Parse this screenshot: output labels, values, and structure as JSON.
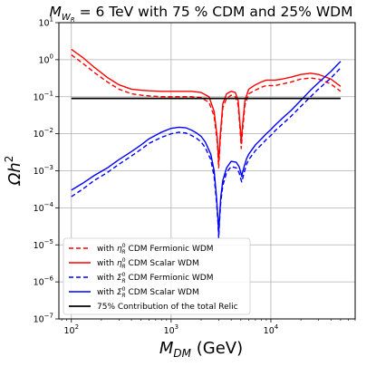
{
  "chart_data": {
    "type": "line",
    "title": {
      "prefix": "M",
      "prefix_sub": "W",
      "prefix_subsub": "R",
      "text": " = 6 TeV with 75 % CDM and 25% WDM"
    },
    "xlabel": {
      "main": "M",
      "sub": "DM",
      "unit": " (GeV)"
    },
    "ylabel": {
      "main": "Ωh",
      "sup": "2"
    },
    "x_scale": "log",
    "y_scale": "log",
    "xlim": [
      75,
      70000
    ],
    "ylim": [
      1e-07,
      10
    ],
    "x_ticks": [
      {
        "base": "10",
        "exp": "2",
        "value": 100
      },
      {
        "base": "10",
        "exp": "3",
        "value": 1000
      },
      {
        "base": "10",
        "exp": "4",
        "value": 10000
      }
    ],
    "y_ticks": [
      {
        "base": "10",
        "exp": "1",
        "value": 10
      },
      {
        "base": "10",
        "exp": "0",
        "value": 1
      },
      {
        "base": "10",
        "exp": "−1",
        "value": 0.1
      },
      {
        "base": "10",
        "exp": "−2",
        "value": 0.01
      },
      {
        "base": "10",
        "exp": "−3",
        "value": 0.001
      },
      {
        "base": "10",
        "exp": "−4",
        "value": 0.0001
      },
      {
        "base": "10",
        "exp": "−5",
        "value": 1e-05
      },
      {
        "base": "10",
        "exp": "−6",
        "value": 1e-06
      },
      {
        "base": "10",
        "exp": "−7",
        "value": 1e-07
      }
    ],
    "grid": true,
    "legend_position": "lower-left",
    "series": [
      {
        "name": "with η_R^0 CDM Fermionic WDM",
        "legend": {
          "pre": "with ",
          "sym": "η",
          "sup": "0",
          "sub": "R",
          "post": " CDM Fermionic WDM"
        },
        "color": "#ff0000",
        "style": "dashed",
        "x": [
          100,
          130,
          170,
          230,
          300,
          400,
          500,
          600,
          800,
          1000,
          1300,
          1600,
          2000,
          2400,
          2700,
          2900,
          3000,
          3100,
          3300,
          3600,
          4000,
          4400,
          4700,
          4950,
          5050,
          5200,
          5500,
          6000,
          7000,
          8000,
          9000,
          10000,
          11000,
          13000,
          16000,
          20000,
          25000,
          30000,
          40000,
          50000
        ],
        "y": [
          1.35,
          0.8,
          0.45,
          0.25,
          0.16,
          0.12,
          0.11,
          0.105,
          0.1,
          0.1,
          0.1,
          0.1,
          0.095,
          0.07,
          0.03,
          0.006,
          0.0012,
          0.006,
          0.05,
          0.09,
          0.11,
          0.1,
          0.06,
          0.01,
          0.004,
          0.012,
          0.06,
          0.12,
          0.15,
          0.18,
          0.2,
          0.2,
          0.2,
          0.22,
          0.25,
          0.3,
          0.32,
          0.3,
          0.22,
          0.14
        ]
      },
      {
        "name": "with η_R^0 CDM Scalar WDM",
        "legend": {
          "pre": "with ",
          "sym": "η",
          "sup": "0",
          "sub": "R",
          "post": " CDM Scalar WDM"
        },
        "color": "#ff0000",
        "style": "solid",
        "x": [
          100,
          130,
          170,
          230,
          300,
          400,
          500,
          600,
          800,
          1000,
          1300,
          1600,
          2000,
          2400,
          2700,
          2900,
          3000,
          3100,
          3300,
          3600,
          4000,
          4400,
          4700,
          4950,
          5050,
          5200,
          5500,
          6000,
          7000,
          8000,
          9000,
          10000,
          11000,
          13000,
          16000,
          20000,
          25000,
          30000,
          40000,
          50000
        ],
        "y": [
          1.9,
          1.15,
          0.62,
          0.33,
          0.21,
          0.16,
          0.15,
          0.145,
          0.14,
          0.14,
          0.14,
          0.14,
          0.13,
          0.1,
          0.04,
          0.008,
          0.0017,
          0.008,
          0.065,
          0.12,
          0.14,
          0.13,
          0.08,
          0.013,
          0.0055,
          0.017,
          0.08,
          0.16,
          0.21,
          0.25,
          0.28,
          0.28,
          0.28,
          0.3,
          0.34,
          0.4,
          0.43,
          0.4,
          0.3,
          0.19
        ]
      },
      {
        "name": "with Σ_R^0 CDM Fermionic WDM",
        "legend": {
          "pre": "with ",
          "sym": "Σ",
          "sup": "0",
          "sub": "R",
          "post": " CDM Fermionic WDM"
        },
        "color": "#0000ff",
        "style": "dashed",
        "x": [
          100,
          130,
          170,
          230,
          300,
          400,
          500,
          600,
          800,
          1000,
          1200,
          1400,
          1600,
          1800,
          2000,
          2200,
          2500,
          2700,
          2850,
          2950,
          3000,
          3050,
          3150,
          3300,
          3600,
          4000,
          4500,
          4800,
          5000,
          5100,
          5200,
          5400,
          5700,
          6000,
          7000,
          8000,
          9000,
          10000,
          11000,
          13000,
          16000,
          20000,
          25000,
          30000,
          40000,
          50000
        ],
        "y": [
          0.0002,
          0.00032,
          0.00055,
          0.0009,
          0.0015,
          0.0025,
          0.0038,
          0.0055,
          0.008,
          0.01,
          0.011,
          0.0105,
          0.009,
          0.0075,
          0.006,
          0.0042,
          0.002,
          0.0007,
          0.00015,
          4e-05,
          1.5e-05,
          4e-05,
          0.00015,
          0.0004,
          0.0009,
          0.0013,
          0.0012,
          0.0009,
          0.0006,
          0.0005,
          0.0006,
          0.0009,
          0.0015,
          0.002,
          0.0035,
          0.005,
          0.007,
          0.009,
          0.012,
          0.018,
          0.03,
          0.055,
          0.1,
          0.16,
          0.32,
          0.6
        ]
      },
      {
        "name": "with Σ_R^0 CDM Scalar WDM",
        "legend": {
          "pre": "with ",
          "sym": "Σ",
          "sup": "0",
          "sub": "R",
          "post": " CDM Scalar WDM"
        },
        "color": "#0000ff",
        "style": "solid",
        "x": [
          100,
          130,
          170,
          230,
          300,
          400,
          500,
          600,
          800,
          1000,
          1200,
          1400,
          1600,
          1800,
          2000,
          2200,
          2500,
          2700,
          2850,
          2950,
          3000,
          3050,
          3150,
          3300,
          3600,
          4000,
          4500,
          4800,
          5000,
          5100,
          5200,
          5400,
          5700,
          6000,
          7000,
          8000,
          9000,
          10000,
          11000,
          13000,
          16000,
          20000,
          25000,
          30000,
          40000,
          50000
        ],
        "y": [
          0.0003,
          0.00046,
          0.00075,
          0.0012,
          0.002,
          0.0033,
          0.005,
          0.0073,
          0.011,
          0.014,
          0.015,
          0.0145,
          0.0125,
          0.0105,
          0.0085,
          0.006,
          0.0028,
          0.001,
          0.0002,
          5e-05,
          2e-05,
          5e-05,
          0.0002,
          0.00055,
          0.0012,
          0.0018,
          0.0017,
          0.0013,
          0.0009,
          0.0007,
          0.0009,
          0.0013,
          0.0021,
          0.0028,
          0.005,
          0.0072,
          0.01,
          0.013,
          0.017,
          0.026,
          0.043,
          0.08,
          0.15,
          0.24,
          0.48,
          0.9
        ]
      },
      {
        "name": "75% Contribution of the total Relic",
        "legend": {
          "pre": "",
          "sym": "",
          "sup": "",
          "sub": "",
          "post": "75% Contribution of the total Relic"
        },
        "color": "#000000",
        "style": "solid",
        "x": [
          100,
          50000
        ],
        "y": [
          0.09,
          0.09
        ]
      }
    ]
  }
}
